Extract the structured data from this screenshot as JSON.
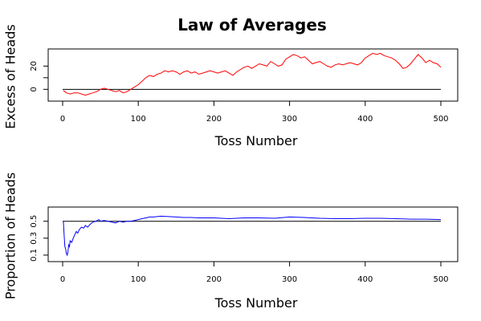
{
  "chart_data": {
    "title": "Law of Averages",
    "panels": [
      {
        "type": "line",
        "ylabel": "Excess of Heads",
        "xlabel": "Toss Number",
        "xlim": [
          0,
          500
        ],
        "ylim": [
          -6,
          32
        ],
        "xticks": [
          0,
          100,
          200,
          300,
          400,
          500
        ],
        "yticks": [
          0,
          10,
          20
        ],
        "ytick_labels": [
          "0",
          "",
          "20"
        ],
        "reference_line": 0,
        "reference_color": "#000000",
        "series": [
          {
            "color": "#ff0000",
            "x": [
              1,
              5,
              10,
              15,
              20,
              25,
              30,
              35,
              40,
              45,
              50,
              55,
              60,
              65,
              70,
              75,
              80,
              85,
              90,
              95,
              100,
              105,
              110,
              115,
              120,
              125,
              130,
              135,
              140,
              145,
              150,
              155,
              160,
              165,
              170,
              175,
              180,
              185,
              190,
              195,
              200,
              205,
              210,
              215,
              220,
              225,
              230,
              235,
              240,
              245,
              250,
              255,
              260,
              265,
              270,
              275,
              280,
              285,
              290,
              295,
              300,
              305,
              310,
              315,
              320,
              325,
              330,
              335,
              340,
              345,
              350,
              355,
              360,
              365,
              370,
              375,
              380,
              385,
              390,
              395,
              400,
              405,
              410,
              415,
              420,
              425,
              430,
              435,
              440,
              445,
              450,
              455,
              460,
              465,
              470,
              475,
              480,
              485,
              490,
              495,
              500
            ],
            "y": [
              -1,
              -3,
              -4,
              -3,
              -3,
              -4,
              -5,
              -4,
              -3,
              -2,
              0,
              1,
              0,
              -1,
              -2,
              -1,
              -3,
              -2,
              0,
              2,
              4,
              7,
              10,
              12,
              11,
              13,
              14,
              16,
              15,
              16,
              15,
              13,
              15,
              16,
              14,
              15,
              13,
              14,
              15,
              16,
              15,
              14,
              15,
              16,
              14,
              12,
              15,
              17,
              19,
              20,
              18,
              20,
              22,
              21,
              20,
              24,
              22,
              20,
              21,
              26,
              28,
              30,
              29,
              27,
              28,
              25,
              22,
              23,
              24,
              22,
              20,
              19,
              21,
              22,
              21,
              22,
              23,
              22,
              21,
              23,
              27,
              29,
              31,
              30,
              31,
              29,
              28,
              27,
              25,
              22,
              18,
              19,
              22,
              26,
              30,
              27,
              23,
              25,
              23,
              22,
              19
            ]
          }
        ]
      },
      {
        "type": "line",
        "ylabel": "Proportion of Heads",
        "xlabel": "Toss Number",
        "xlim": [
          0,
          500
        ],
        "ylim": [
          0.08,
          0.63
        ],
        "xticks": [
          0,
          100,
          200,
          300,
          400,
          500
        ],
        "yticks": [
          0.1,
          0.3,
          0.5
        ],
        "ytick_labels": [
          "0.1",
          "0.3",
          "0.5"
        ],
        "reference_line": 0.5,
        "reference_color": "#000000",
        "series": [
          {
            "color": "#0000ff",
            "x": [
              1,
              2,
              3,
              4,
              5,
              6,
              7,
              8,
              9,
              10,
              12,
              14,
              16,
              18,
              20,
              22,
              25,
              28,
              30,
              33,
              36,
              40,
              44,
              48,
              50,
              55,
              60,
              65,
              70,
              75,
              80,
              85,
              90,
              95,
              100,
              105,
              110,
              115,
              120,
              130,
              140,
              150,
              160,
              170,
              180,
              190,
              200,
              220,
              240,
              260,
              280,
              300,
              320,
              340,
              360,
              380,
              400,
              420,
              440,
              460,
              480,
              500
            ],
            "y": [
              0.5,
              0.33,
              0.2,
              0.17,
              0.12,
              0.1,
              0.14,
              0.22,
              0.2,
              0.27,
              0.25,
              0.3,
              0.34,
              0.38,
              0.36,
              0.4,
              0.43,
              0.42,
              0.45,
              0.43,
              0.46,
              0.49,
              0.5,
              0.52,
              0.5,
              0.51,
              0.5,
              0.49,
              0.48,
              0.5,
              0.49,
              0.5,
              0.5,
              0.51,
              0.52,
              0.53,
              0.54,
              0.55,
              0.55,
              0.56,
              0.555,
              0.55,
              0.545,
              0.545,
              0.54,
              0.54,
              0.54,
              0.53,
              0.54,
              0.54,
              0.535,
              0.55,
              0.545,
              0.535,
              0.53,
              0.53,
              0.535,
              0.535,
              0.53,
              0.525,
              0.525,
              0.52
            ]
          }
        ]
      }
    ]
  }
}
